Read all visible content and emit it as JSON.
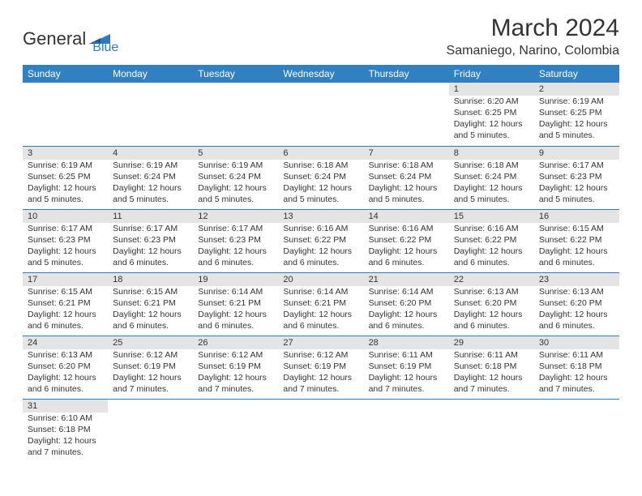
{
  "header": {
    "logo_general": "General",
    "logo_blue": "Blue",
    "month_title": "March 2024",
    "location": "Samaniego, Narino, Colombia"
  },
  "colors": {
    "header_bg": "#3180c2",
    "header_text": "#ffffff",
    "daynum_bg": "#e4e4e4",
    "border": "#2b7bbf",
    "text": "#333333",
    "logo_blue": "#2b7bbf"
  },
  "day_headers": [
    "Sunday",
    "Monday",
    "Tuesday",
    "Wednesday",
    "Thursday",
    "Friday",
    "Saturday"
  ],
  "weeks": [
    [
      {
        "day": "",
        "sunrise": "",
        "sunset": "",
        "daylight1": "",
        "daylight2": ""
      },
      {
        "day": "",
        "sunrise": "",
        "sunset": "",
        "daylight1": "",
        "daylight2": ""
      },
      {
        "day": "",
        "sunrise": "",
        "sunset": "",
        "daylight1": "",
        "daylight2": ""
      },
      {
        "day": "",
        "sunrise": "",
        "sunset": "",
        "daylight1": "",
        "daylight2": ""
      },
      {
        "day": "",
        "sunrise": "",
        "sunset": "",
        "daylight1": "",
        "daylight2": ""
      },
      {
        "day": "1",
        "sunrise": "Sunrise: 6:20 AM",
        "sunset": "Sunset: 6:25 PM",
        "daylight1": "Daylight: 12 hours",
        "daylight2": "and 5 minutes."
      },
      {
        "day": "2",
        "sunrise": "Sunrise: 6:19 AM",
        "sunset": "Sunset: 6:25 PM",
        "daylight1": "Daylight: 12 hours",
        "daylight2": "and 5 minutes."
      }
    ],
    [
      {
        "day": "3",
        "sunrise": "Sunrise: 6:19 AM",
        "sunset": "Sunset: 6:25 PM",
        "daylight1": "Daylight: 12 hours",
        "daylight2": "and 5 minutes."
      },
      {
        "day": "4",
        "sunrise": "Sunrise: 6:19 AM",
        "sunset": "Sunset: 6:24 PM",
        "daylight1": "Daylight: 12 hours",
        "daylight2": "and 5 minutes."
      },
      {
        "day": "5",
        "sunrise": "Sunrise: 6:19 AM",
        "sunset": "Sunset: 6:24 PM",
        "daylight1": "Daylight: 12 hours",
        "daylight2": "and 5 minutes."
      },
      {
        "day": "6",
        "sunrise": "Sunrise: 6:18 AM",
        "sunset": "Sunset: 6:24 PM",
        "daylight1": "Daylight: 12 hours",
        "daylight2": "and 5 minutes."
      },
      {
        "day": "7",
        "sunrise": "Sunrise: 6:18 AM",
        "sunset": "Sunset: 6:24 PM",
        "daylight1": "Daylight: 12 hours",
        "daylight2": "and 5 minutes."
      },
      {
        "day": "8",
        "sunrise": "Sunrise: 6:18 AM",
        "sunset": "Sunset: 6:24 PM",
        "daylight1": "Daylight: 12 hours",
        "daylight2": "and 5 minutes."
      },
      {
        "day": "9",
        "sunrise": "Sunrise: 6:17 AM",
        "sunset": "Sunset: 6:23 PM",
        "daylight1": "Daylight: 12 hours",
        "daylight2": "and 5 minutes."
      }
    ],
    [
      {
        "day": "10",
        "sunrise": "Sunrise: 6:17 AM",
        "sunset": "Sunset: 6:23 PM",
        "daylight1": "Daylight: 12 hours",
        "daylight2": "and 5 minutes."
      },
      {
        "day": "11",
        "sunrise": "Sunrise: 6:17 AM",
        "sunset": "Sunset: 6:23 PM",
        "daylight1": "Daylight: 12 hours",
        "daylight2": "and 6 minutes."
      },
      {
        "day": "12",
        "sunrise": "Sunrise: 6:17 AM",
        "sunset": "Sunset: 6:23 PM",
        "daylight1": "Daylight: 12 hours",
        "daylight2": "and 6 minutes."
      },
      {
        "day": "13",
        "sunrise": "Sunrise: 6:16 AM",
        "sunset": "Sunset: 6:22 PM",
        "daylight1": "Daylight: 12 hours",
        "daylight2": "and 6 minutes."
      },
      {
        "day": "14",
        "sunrise": "Sunrise: 6:16 AM",
        "sunset": "Sunset: 6:22 PM",
        "daylight1": "Daylight: 12 hours",
        "daylight2": "and 6 minutes."
      },
      {
        "day": "15",
        "sunrise": "Sunrise: 6:16 AM",
        "sunset": "Sunset: 6:22 PM",
        "daylight1": "Daylight: 12 hours",
        "daylight2": "and 6 minutes."
      },
      {
        "day": "16",
        "sunrise": "Sunrise: 6:15 AM",
        "sunset": "Sunset: 6:22 PM",
        "daylight1": "Daylight: 12 hours",
        "daylight2": "and 6 minutes."
      }
    ],
    [
      {
        "day": "17",
        "sunrise": "Sunrise: 6:15 AM",
        "sunset": "Sunset: 6:21 PM",
        "daylight1": "Daylight: 12 hours",
        "daylight2": "and 6 minutes."
      },
      {
        "day": "18",
        "sunrise": "Sunrise: 6:15 AM",
        "sunset": "Sunset: 6:21 PM",
        "daylight1": "Daylight: 12 hours",
        "daylight2": "and 6 minutes."
      },
      {
        "day": "19",
        "sunrise": "Sunrise: 6:14 AM",
        "sunset": "Sunset: 6:21 PM",
        "daylight1": "Daylight: 12 hours",
        "daylight2": "and 6 minutes."
      },
      {
        "day": "20",
        "sunrise": "Sunrise: 6:14 AM",
        "sunset": "Sunset: 6:21 PM",
        "daylight1": "Daylight: 12 hours",
        "daylight2": "and 6 minutes."
      },
      {
        "day": "21",
        "sunrise": "Sunrise: 6:14 AM",
        "sunset": "Sunset: 6:20 PM",
        "daylight1": "Daylight: 12 hours",
        "daylight2": "and 6 minutes."
      },
      {
        "day": "22",
        "sunrise": "Sunrise: 6:13 AM",
        "sunset": "Sunset: 6:20 PM",
        "daylight1": "Daylight: 12 hours",
        "daylight2": "and 6 minutes."
      },
      {
        "day": "23",
        "sunrise": "Sunrise: 6:13 AM",
        "sunset": "Sunset: 6:20 PM",
        "daylight1": "Daylight: 12 hours",
        "daylight2": "and 6 minutes."
      }
    ],
    [
      {
        "day": "24",
        "sunrise": "Sunrise: 6:13 AM",
        "sunset": "Sunset: 6:20 PM",
        "daylight1": "Daylight: 12 hours",
        "daylight2": "and 6 minutes."
      },
      {
        "day": "25",
        "sunrise": "Sunrise: 6:12 AM",
        "sunset": "Sunset: 6:19 PM",
        "daylight1": "Daylight: 12 hours",
        "daylight2": "and 7 minutes."
      },
      {
        "day": "26",
        "sunrise": "Sunrise: 6:12 AM",
        "sunset": "Sunset: 6:19 PM",
        "daylight1": "Daylight: 12 hours",
        "daylight2": "and 7 minutes."
      },
      {
        "day": "27",
        "sunrise": "Sunrise: 6:12 AM",
        "sunset": "Sunset: 6:19 PM",
        "daylight1": "Daylight: 12 hours",
        "daylight2": "and 7 minutes."
      },
      {
        "day": "28",
        "sunrise": "Sunrise: 6:11 AM",
        "sunset": "Sunset: 6:19 PM",
        "daylight1": "Daylight: 12 hours",
        "daylight2": "and 7 minutes."
      },
      {
        "day": "29",
        "sunrise": "Sunrise: 6:11 AM",
        "sunset": "Sunset: 6:18 PM",
        "daylight1": "Daylight: 12 hours",
        "daylight2": "and 7 minutes."
      },
      {
        "day": "30",
        "sunrise": "Sunrise: 6:11 AM",
        "sunset": "Sunset: 6:18 PM",
        "daylight1": "Daylight: 12 hours",
        "daylight2": "and 7 minutes."
      }
    ],
    [
      {
        "day": "31",
        "sunrise": "Sunrise: 6:10 AM",
        "sunset": "Sunset: 6:18 PM",
        "daylight1": "Daylight: 12 hours",
        "daylight2": "and 7 minutes."
      },
      {
        "day": "",
        "sunrise": "",
        "sunset": "",
        "daylight1": "",
        "daylight2": ""
      },
      {
        "day": "",
        "sunrise": "",
        "sunset": "",
        "daylight1": "",
        "daylight2": ""
      },
      {
        "day": "",
        "sunrise": "",
        "sunset": "",
        "daylight1": "",
        "daylight2": ""
      },
      {
        "day": "",
        "sunrise": "",
        "sunset": "",
        "daylight1": "",
        "daylight2": ""
      },
      {
        "day": "",
        "sunrise": "",
        "sunset": "",
        "daylight1": "",
        "daylight2": ""
      },
      {
        "day": "",
        "sunrise": "",
        "sunset": "",
        "daylight1": "",
        "daylight2": ""
      }
    ]
  ]
}
